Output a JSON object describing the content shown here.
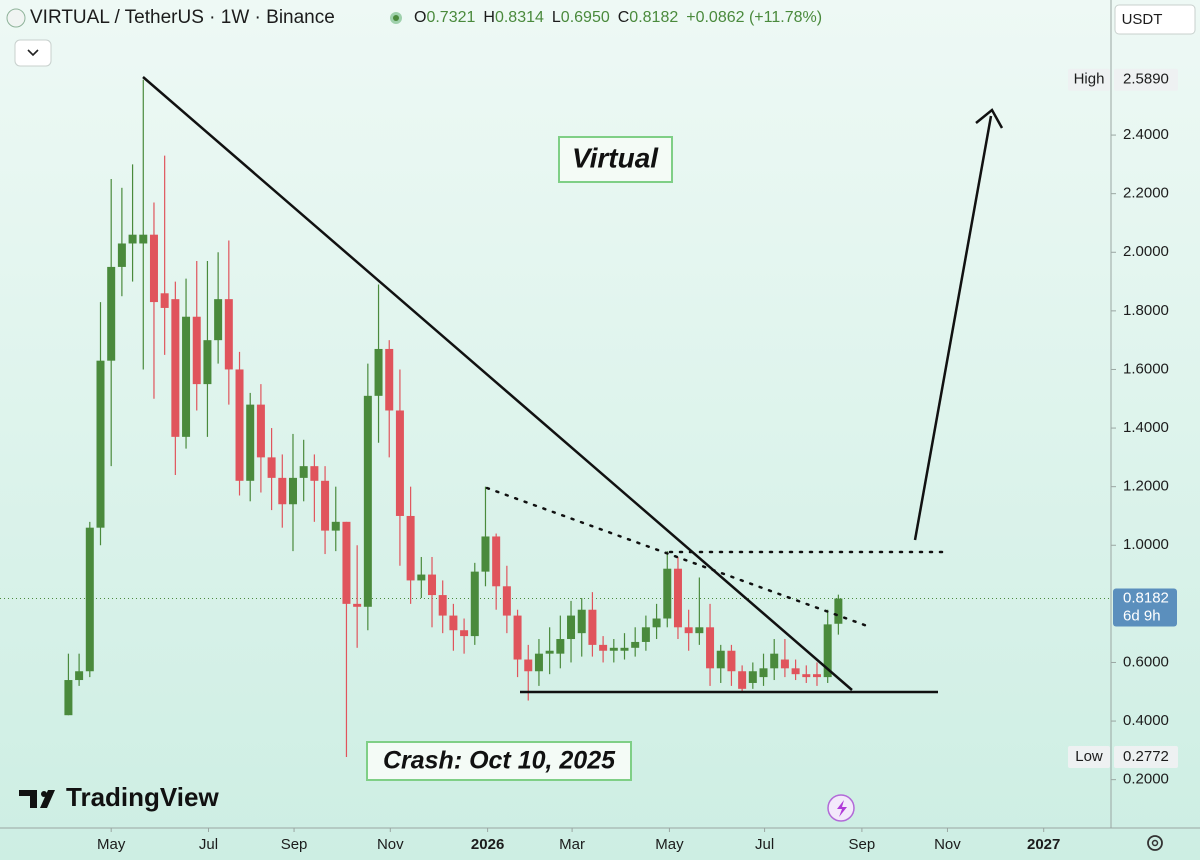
{
  "header": {
    "symbol": "VIRTUAL / TetherUS · 1W · Binance",
    "ohlc": [
      {
        "key": "O",
        "value": "0.7321"
      },
      {
        "key": "H",
        "value": "0.8314"
      },
      {
        "key": "L",
        "value": "0.6950"
      },
      {
        "key": "C",
        "value": "0.8182"
      }
    ],
    "change": "+0.0862 (+11.78%)",
    "currency": "USDT",
    "brand": "TradingView"
  },
  "chart_data": {
    "type": "candlestick",
    "annotations": [
      "Virtual",
      "Crash: Oct 10, 2025"
    ],
    "categories": [
      null,
      null,
      null,
      null,
      null,
      null,
      null,
      null,
      null,
      null,
      null,
      null,
      null,
      null,
      null,
      null,
      null,
      null,
      null,
      null,
      null,
      null,
      null,
      null,
      null,
      null,
      null,
      null,
      null,
      null,
      null,
      null,
      null,
      null,
      null,
      null,
      null,
      null,
      null,
      null,
      null,
      null,
      null,
      null,
      null,
      null,
      null,
      null,
      null,
      null,
      null,
      null,
      null,
      null,
      null,
      null,
      null,
      null,
      null,
      null,
      null,
      null,
      null,
      null,
      null,
      null,
      null,
      null,
      null,
      null,
      null,
      null,
      null
    ],
    "open": [
      0.42,
      0.54,
      0.57,
      1.06,
      1.63,
      1.95,
      2.03,
      2.03,
      2.06,
      1.86,
      1.84,
      1.37,
      1.78,
      1.55,
      1.7,
      1.84,
      1.6,
      1.22,
      1.48,
      1.3,
      1.23,
      1.14,
      1.23,
      1.27,
      1.22,
      1.05,
      1.08,
      0.8,
      0.79,
      1.51,
      1.67,
      1.46,
      1.1,
      0.88,
      0.9,
      0.83,
      0.76,
      0.71,
      0.69,
      0.91,
      1.03,
      0.86,
      0.76,
      0.61,
      0.57,
      0.63,
      0.63,
      0.68,
      0.7,
      0.78,
      0.66,
      0.64,
      0.64,
      0.65,
      0.67,
      0.72,
      0.75,
      0.92,
      0.72,
      0.7,
      0.72,
      0.58,
      0.64,
      0.57,
      0.53,
      0.55,
      0.58,
      0.61,
      0.58,
      0.56,
      0.56,
      0.55,
      0.7321
    ],
    "high": [
      0.63,
      0.63,
      1.08,
      1.83,
      2.25,
      2.22,
      2.3,
      2.589,
      2.17,
      2.33,
      1.9,
      1.91,
      1.97,
      1.97,
      2.0,
      2.04,
      1.66,
      1.52,
      1.55,
      1.4,
      1.31,
      1.38,
      1.36,
      1.31,
      1.27,
      1.2,
      1.08,
      1.0,
      1.62,
      1.89,
      1.7,
      1.6,
      1.2,
      0.96,
      0.96,
      0.88,
      0.8,
      0.75,
      0.94,
      1.2,
      1.04,
      0.93,
      0.78,
      0.66,
      0.68,
      0.72,
      0.76,
      0.81,
      0.82,
      0.84,
      0.69,
      0.68,
      0.7,
      0.72,
      0.76,
      0.8,
      0.98,
      0.96,
      0.78,
      0.89,
      0.8,
      0.66,
      0.66,
      0.59,
      0.6,
      0.63,
      0.68,
      0.68,
      0.61,
      0.59,
      0.6,
      0.78,
      0.8314
    ],
    "low": [
      0.42,
      0.52,
      0.55,
      1.0,
      1.27,
      1.85,
      1.9,
      1.6,
      1.5,
      1.65,
      1.24,
      1.33,
      1.46,
      1.37,
      1.62,
      1.48,
      1.17,
      1.15,
      1.18,
      1.12,
      1.06,
      0.98,
      1.15,
      1.08,
      0.97,
      0.98,
      0.2772,
      0.65,
      0.71,
      1.35,
      1.3,
      0.93,
      0.8,
      0.82,
      0.72,
      0.7,
      0.64,
      0.63,
      0.66,
      0.86,
      0.78,
      0.7,
      0.55,
      0.47,
      0.52,
      0.56,
      0.58,
      0.6,
      0.62,
      0.62,
      0.6,
      0.6,
      0.61,
      0.62,
      0.64,
      0.68,
      0.72,
      0.68,
      0.64,
      0.66,
      0.52,
      0.53,
      0.52,
      0.5,
      0.51,
      0.52,
      0.54,
      0.55,
      0.54,
      0.53,
      0.52,
      0.53,
      0.695
    ],
    "close": [
      0.54,
      0.57,
      1.06,
      1.63,
      1.95,
      2.03,
      2.06,
      2.06,
      1.83,
      1.81,
      1.37,
      1.78,
      1.55,
      1.7,
      1.84,
      1.6,
      1.22,
      1.48,
      1.3,
      1.23,
      1.14,
      1.23,
      1.27,
      1.22,
      1.05,
      1.08,
      0.8,
      0.79,
      1.51,
      1.67,
      1.46,
      1.1,
      0.88,
      0.9,
      0.83,
      0.76,
      0.71,
      0.69,
      0.91,
      1.03,
      0.86,
      0.76,
      0.61,
      0.57,
      0.63,
      0.64,
      0.68,
      0.76,
      0.78,
      0.66,
      0.64,
      0.65,
      0.65,
      0.67,
      0.72,
      0.75,
      0.92,
      0.72,
      0.7,
      0.72,
      0.58,
      0.64,
      0.57,
      0.51,
      0.57,
      0.58,
      0.63,
      0.58,
      0.56,
      0.55,
      0.55,
      0.73,
      0.8182
    ],
    "up_color": "#4a8a3c",
    "down_color": "#e0545c",
    "xlim": [
      -0.6,
      97.4
    ],
    "xticks": [
      {
        "value": 4.0,
        "label": "May"
      },
      {
        "value": 13.1,
        "label": "Jul"
      },
      {
        "value": 21.1,
        "label": "Sep"
      },
      {
        "value": 30.1,
        "label": "Nov"
      },
      {
        "value": 39.2,
        "label": "2026"
      },
      {
        "value": 47.1,
        "label": "Mar"
      },
      {
        "value": 56.2,
        "label": "May"
      },
      {
        "value": 65.1,
        "label": "Jul"
      },
      {
        "value": 74.2,
        "label": "Sep"
      },
      {
        "value": 82.2,
        "label": "Nov"
      },
      {
        "value": 91.2,
        "label": "2027"
      }
    ],
    "ylim": [
      0.035,
      2.861
    ],
    "yticks": [
      {
        "value": 0.2,
        "label": "0.2000"
      },
      {
        "value": 0.4,
        "label": "0.4000"
      },
      {
        "value": 0.6,
        "label": "0.6000"
      },
      {
        "value": 1.0,
        "label": "1.0000"
      },
      {
        "value": 1.2,
        "label": "1.2000"
      },
      {
        "value": 1.4,
        "label": "1.4000"
      },
      {
        "value": 1.6,
        "label": "1.6000"
      },
      {
        "value": 1.8,
        "label": "1.8000"
      },
      {
        "value": 2.0,
        "label": "2.0000"
      },
      {
        "value": 2.2,
        "label": "2.2000"
      },
      {
        "value": 2.4,
        "label": "2.4000"
      }
    ],
    "price_badges": [
      {
        "name": "High",
        "value": 2.589,
        "label": "2.5890"
      },
      {
        "name": "Low",
        "value": 0.2772,
        "label": "0.2772"
      }
    ],
    "last_price": {
      "value": 0.8182,
      "label": "0.8182",
      "countdown": "6d 9h"
    }
  }
}
